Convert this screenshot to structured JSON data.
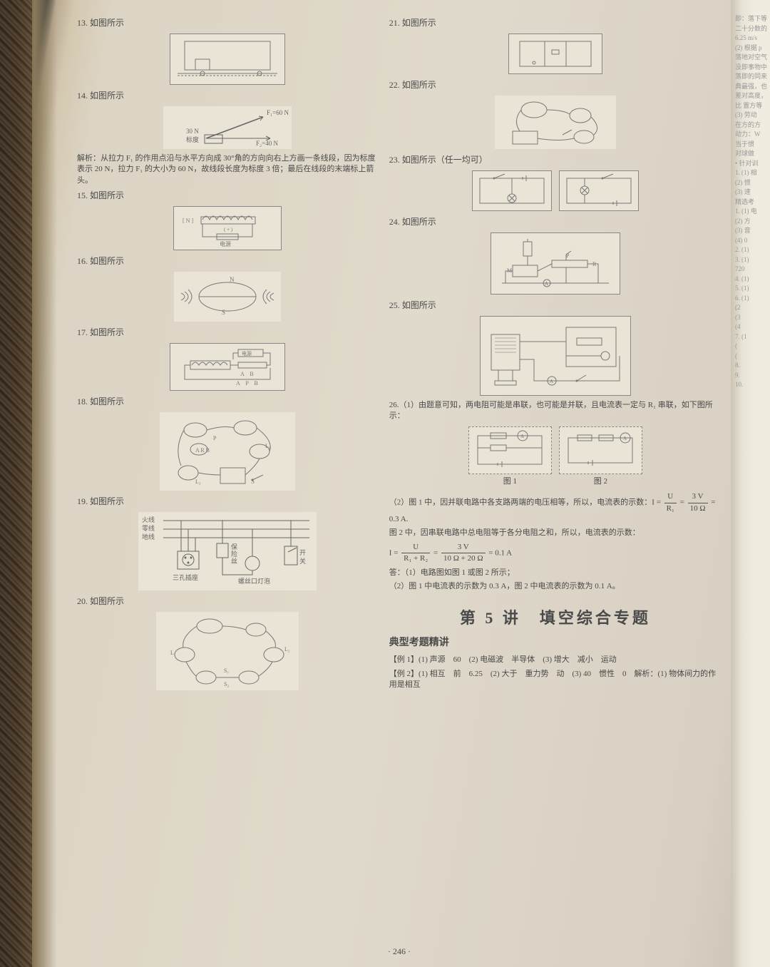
{
  "page_number": "· 246 ·",
  "left": {
    "q13": "13. 如图所示",
    "q14": "14. 如图所示",
    "q14_label1": "F₁=60 N",
    "q14_label2": "30 N",
    "q14_label3": "标度",
    "q14_label4": "F₂=40 N",
    "q14_analysis": "解析：从拉力 F₁ 的作用点沿与水平方向成 30°角的方向向右上方画一条线段，因为标度表示 20 N，拉力 F₁ 的大小为 60 N，故线段长度为标度 3 倍；最后在线段的末端标上箭头。",
    "q15": "15. 如图所示",
    "q16": "16. 如图所示",
    "q17": "17. 如图所示",
    "q18": "18. 如图所示",
    "q19": "19. 如图所示",
    "q19_labels": [
      "火线",
      "零线",
      "地线",
      "保险丝",
      "开关",
      "三孔插座",
      "螺丝口灯泡"
    ],
    "q20": "20. 如图所示"
  },
  "right": {
    "q21": "21. 如图所示",
    "q22": "22. 如图所示",
    "q23": "23. 如图所示（任一均可）",
    "q24": "24. 如图所示",
    "q25": "25. 如图所示",
    "q26_1": "26.（1）由题意可知，两电阻可能是串联，也可能是并联，且电流表一定与 R₁ 串联，如下图所示：",
    "fig1_caption": "图 1",
    "fig2_caption": "图 2",
    "q26_2a": "（2）图 1 中，因并联电路中各支路两端的电压相等，所以，电流表的示数：I =",
    "q26_2b": "= 0.3 A.",
    "q26_2c": "图 2 中，因串联电路中总电阻等于各分电阻之和，所以，电流表的示数：",
    "q26_2d": "I =",
    "q26_2e": "= 0.1 A",
    "q26_ans1": "答：（1）电路图如图 1 或图 2 所示；",
    "q26_ans2": "（2）图 1 中电流表的示数为 0.3 A，图 2 中电流表的示数为 0.1 A。",
    "frac1_num": "U",
    "frac1_den": "R₁",
    "frac2_num": "3 V",
    "frac2_den": "10 Ω",
    "frac3_num": "U",
    "frac3_den": "R₁ + R₂",
    "frac4_num": "3 V",
    "frac4_den": "10 Ω + 20 Ω",
    "section5": "第 5 讲　填空综合专题",
    "dianxing": "典型考题精讲",
    "ex1": "【例 1】(1) 声源　60　(2) 电磁波　半导体　(3) 增大　减小　运动",
    "ex2": "【例 2】(1) 相互　前　6.25　(2) 大于　重力势　动　(3) 40　惯性　0　解析：(1) 物体间力的作用是相互"
  },
  "peek": {
    "lines": [
      "即：落下等",
      "二十分数的",
      "6.25 m/s",
      "(2) 根据 p",
      "落地对空气",
      "没即事物中",
      "落即的同来",
      "典最强，也",
      "差对高度，",
      "比 置方等",
      "(3) 劳动",
      "在方的方",
      "动力：W",
      "当于惯",
      "对球做",
      "• 针对训",
      "1. (1) 相",
      "(2) 惯",
      "(3) 速",
      "精选考",
      "1. (1) 电",
      "(2) 方",
      "(3) 音",
      "(4) 0",
      "2. (1)",
      "3. (1)",
      "720",
      "4. (1)",
      "5. (1)",
      "6. (1)",
      "(2",
      "(3",
      "(4",
      "7. (1",
      "(",
      "(",
      "8.",
      "9.",
      "10."
    ]
  },
  "colors": {
    "text": "#4a4a4a",
    "fig_border": "#888888",
    "fig_bg": "#eae4d6",
    "page_bg": "#dcd4c4"
  }
}
